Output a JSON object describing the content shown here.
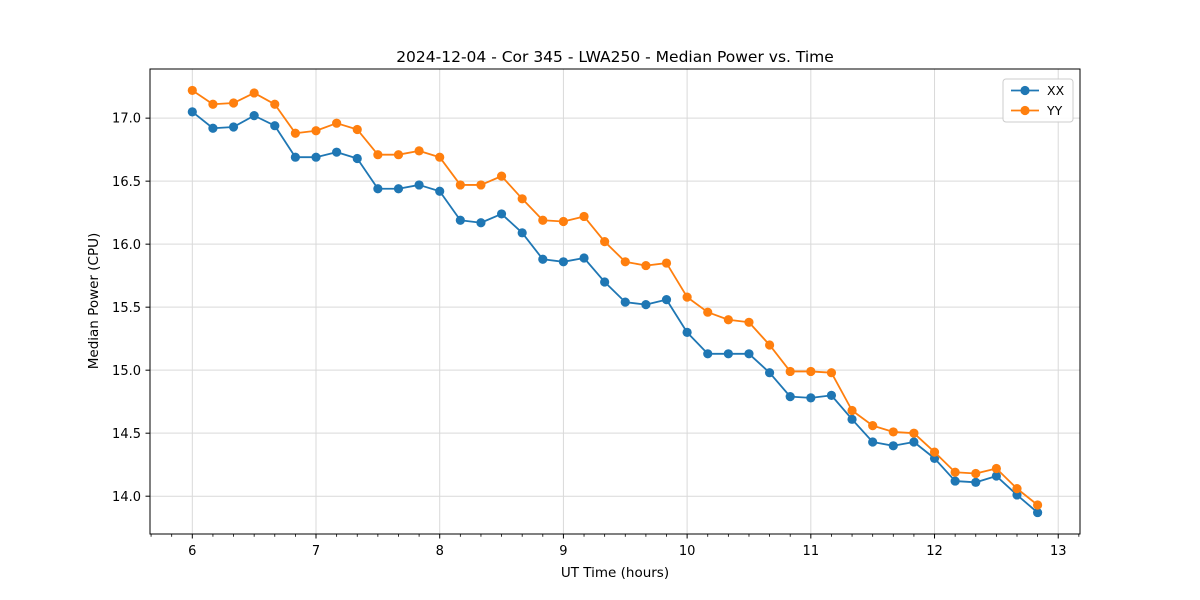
{
  "chart_data": {
    "type": "line",
    "title": "2024-12-04 - Cor 345 - LWA250 - Median Power vs. Time",
    "xlabel": "UT Time (hours)",
    "ylabel": "Median Power (CPU)",
    "xlim": [
      5.658,
      13.176
    ],
    "ylim": [
      13.7,
      17.39
    ],
    "x_ticks": [
      6,
      7,
      8,
      9,
      10,
      11,
      12,
      13
    ],
    "x_tick_labels": [
      "6",
      "7",
      "8",
      "9",
      "10",
      "11",
      "12",
      "13"
    ],
    "minor_x_tick_step": 0.166667,
    "y_ticks": [
      14.0,
      14.5,
      15.0,
      15.5,
      16.0,
      16.5,
      17.0
    ],
    "y_tick_labels": [
      "14.0",
      "14.5",
      "15.0",
      "15.5",
      "16.0",
      "16.5",
      "17.0"
    ],
    "grid": true,
    "grid_color": "#d9d9d9",
    "spine_color": "#000000",
    "background_color": "#ffffff",
    "legend_position": "upper right",
    "legend_edge_color": "#cccccc",
    "x": [
      6.0,
      6.1667,
      6.3333,
      6.5,
      6.6667,
      6.8333,
      7.0,
      7.1667,
      7.3333,
      7.5,
      7.6667,
      7.8333,
      8.0,
      8.1667,
      8.3333,
      8.5,
      8.6667,
      8.8333,
      9.0,
      9.1667,
      9.3333,
      9.5,
      9.6667,
      9.8333,
      10.0,
      10.1667,
      10.3333,
      10.5,
      10.6667,
      10.8333,
      11.0,
      11.1667,
      11.3333,
      11.5,
      11.6667,
      11.8333,
      12.0,
      12.1667,
      12.3333,
      12.5,
      12.6667,
      12.8333
    ],
    "series": [
      {
        "name": "XX",
        "color": "#1f77b4",
        "values": [
          17.05,
          16.92,
          16.93,
          17.02,
          16.94,
          16.69,
          16.69,
          16.73,
          16.68,
          16.44,
          16.44,
          16.47,
          16.42,
          16.19,
          16.17,
          16.24,
          16.09,
          15.88,
          15.86,
          15.89,
          15.7,
          15.54,
          15.52,
          15.56,
          15.3,
          15.13,
          15.13,
          15.13,
          14.98,
          14.79,
          14.78,
          14.8,
          14.61,
          14.43,
          14.4,
          14.43,
          14.3,
          14.12,
          14.11,
          14.16,
          14.01,
          13.87
        ]
      },
      {
        "name": "YY",
        "color": "#ff7f0e",
        "values": [
          17.22,
          17.11,
          17.12,
          17.2,
          17.11,
          16.88,
          16.9,
          16.96,
          16.91,
          16.71,
          16.71,
          16.74,
          16.69,
          16.47,
          16.47,
          16.54,
          16.36,
          16.19,
          16.18,
          16.22,
          16.02,
          15.86,
          15.83,
          15.85,
          15.58,
          15.46,
          15.4,
          15.38,
          15.2,
          14.99,
          14.99,
          14.98,
          14.68,
          14.56,
          14.51,
          14.5,
          14.35,
          14.19,
          14.18,
          14.22,
          14.06,
          13.93
        ]
      }
    ]
  }
}
